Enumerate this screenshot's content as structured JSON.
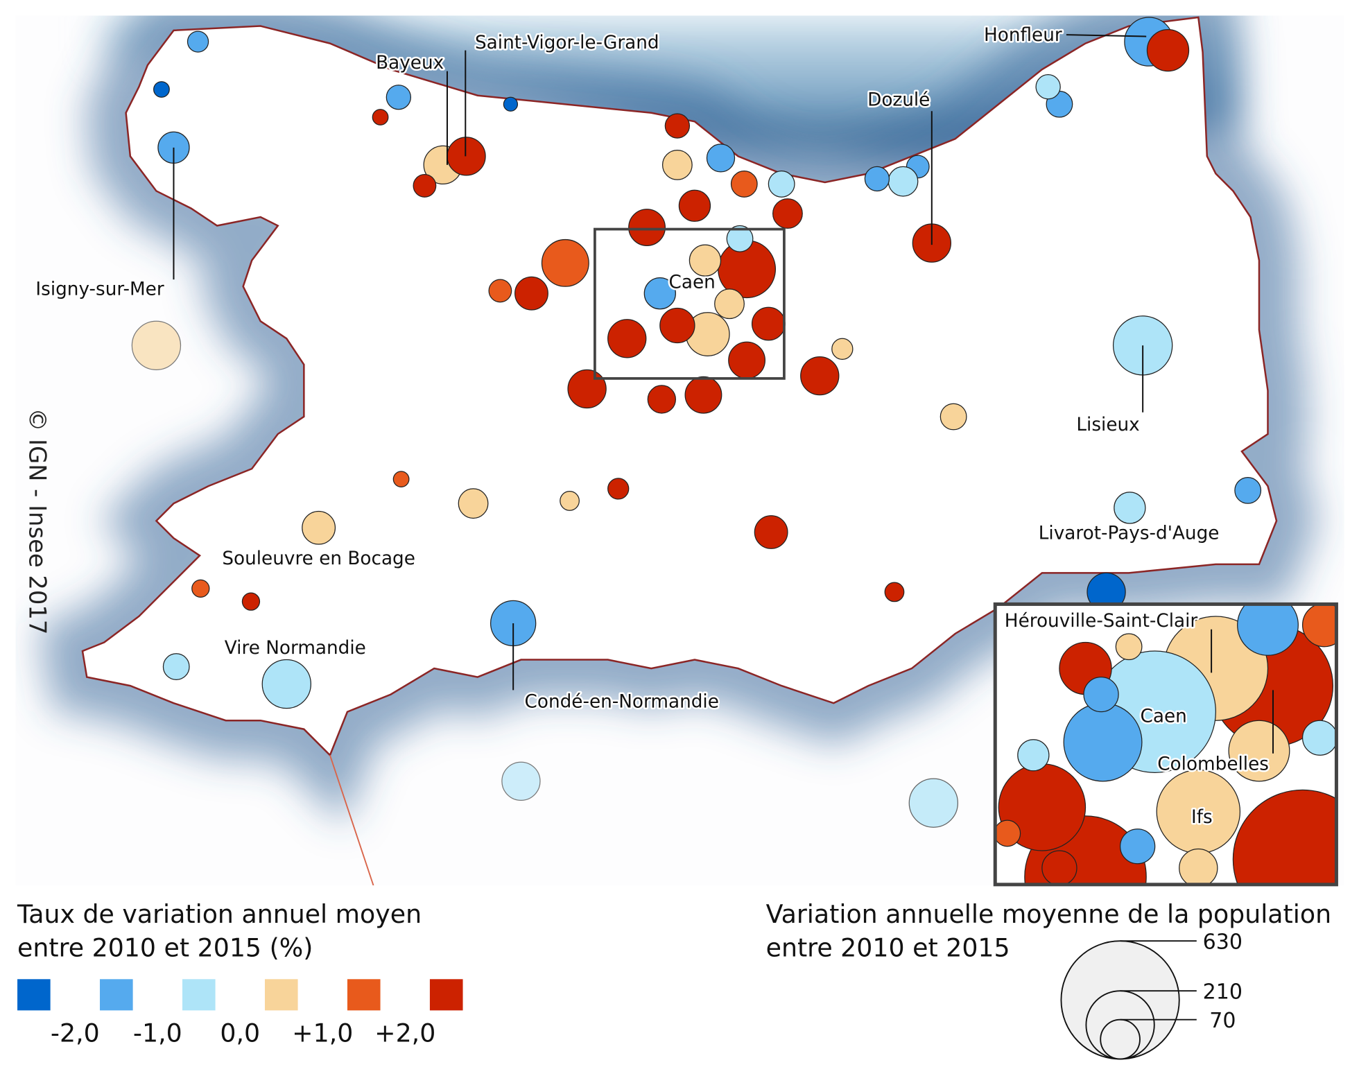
{
  "map": {
    "copyright": "© IGN - Insee 2017",
    "places": [
      {
        "label": "Bayeux"
      },
      {
        "label": "Saint-Vigor-le-Grand"
      },
      {
        "label": "Honfleur"
      },
      {
        "label": "Dozulé"
      },
      {
        "label": "Isigny-sur-Mer"
      },
      {
        "label": "Caen"
      },
      {
        "label": "Lisieux"
      },
      {
        "label": "Livarot-Pays-d'Auge"
      },
      {
        "label": "Souleuvre en Bocage"
      },
      {
        "label": "Vire Normandie"
      },
      {
        "label": "Condé-en-Normandie"
      }
    ],
    "inset_places": [
      {
        "label": "Hérouville-Saint-Clair"
      },
      {
        "label": "Caen"
      },
      {
        "label": "Colombelles"
      },
      {
        "label": "Ifs"
      }
    ]
  },
  "legend_color": {
    "title_lines": [
      "Taux de variation annuel moyen",
      "entre 2010 et 2015 (%)"
    ],
    "colors": [
      "#0066cc",
      "#55aaee",
      "#aee4f8",
      "#f8d49a",
      "#e85a1c",
      "#cc2200"
    ],
    "ticks": [
      {
        "value": -2,
        "label": "-2,0"
      },
      {
        "value": -1,
        "label": "-1,0"
      },
      {
        "value": 0,
        "label": "0,0"
      },
      {
        "value": 1,
        "label": "+1,0"
      },
      {
        "value": 2,
        "label": "+2,0"
      }
    ]
  },
  "legend_size": {
    "title_lines": [
      "Variation annuelle moyenne de la population",
      "entre 2010 et 2015"
    ],
    "values": [
      630,
      210,
      70
    ]
  }
}
